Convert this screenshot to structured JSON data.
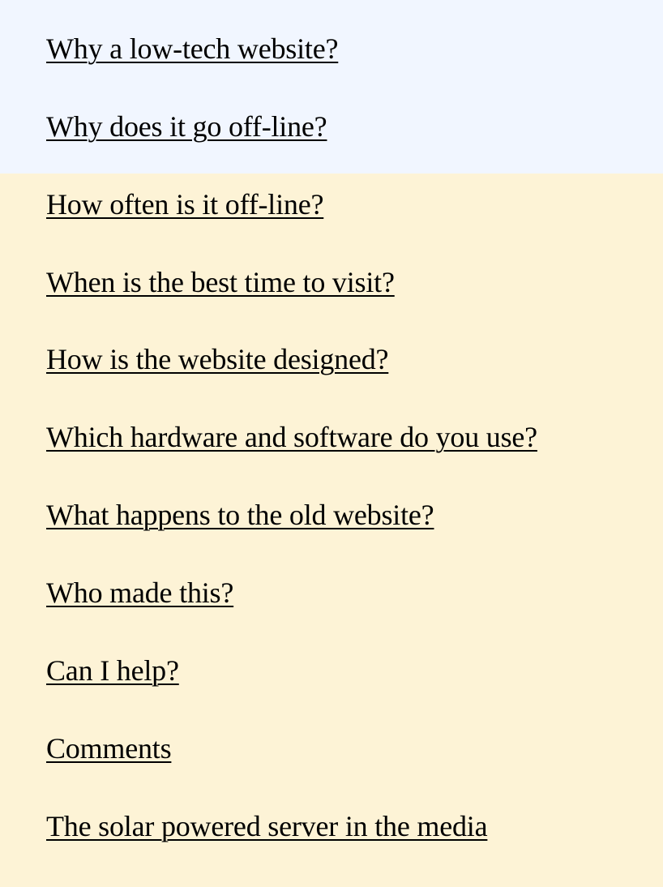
{
  "colors": {
    "top_band_background": "#f1f6ff",
    "page_background": "#fdf3d6",
    "link_text": "#000000"
  },
  "toc": {
    "items": [
      {
        "label": "Why a low-tech website?"
      },
      {
        "label": "Why does it go off-line?"
      },
      {
        "label": "How often is it off-line?"
      },
      {
        "label": "When is the best time to visit?"
      },
      {
        "label": "How is the website designed?"
      },
      {
        "label": "Which hardware and software do you use?"
      },
      {
        "label": "What happens to the old website?"
      },
      {
        "label": "Who made this?"
      },
      {
        "label": "Can I help?"
      },
      {
        "label": "Comments"
      },
      {
        "label": "The solar powered server in the media"
      }
    ]
  }
}
